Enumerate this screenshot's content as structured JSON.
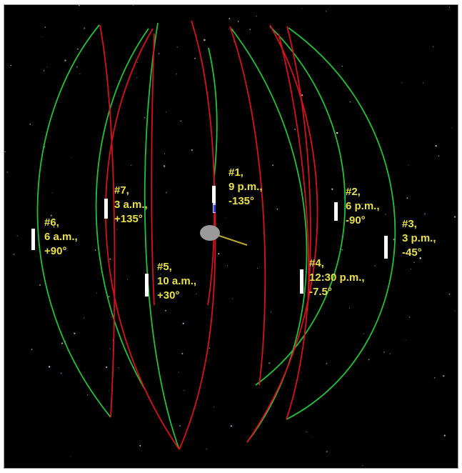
{
  "colors": {
    "background": "#000000",
    "orbit_green": "#22c23a",
    "orbit_red": "#d8121b",
    "label_yellow": "#e8e04a",
    "marker_white": "#ffffff",
    "body_gray": "#9a9a9a"
  },
  "labels": [
    {
      "id": "1",
      "number": "#1,",
      "time": "9 p.m.,",
      "angle": "-135°"
    },
    {
      "id": "2",
      "number": "#2,",
      "time": "6 p.m.,",
      "angle": "-90°"
    },
    {
      "id": "3",
      "number": "#3,",
      "time": "3 p.m.,",
      "angle": "-45°"
    },
    {
      "id": "4",
      "number": "#4,",
      "time": "12:30 p.m.,",
      "angle": "-7.5°"
    },
    {
      "id": "5",
      "number": "#5,",
      "time": "10 a.m.,",
      "angle": "+30°"
    },
    {
      "id": "6",
      "number": "#6,",
      "time": "6 a.m.,",
      "angle": "+90°"
    },
    {
      "id": "7",
      "number": "#7,",
      "time": "3 a.m.,",
      "angle": "+135°"
    }
  ],
  "central_body": {
    "icon": "asteroid-icon"
  }
}
